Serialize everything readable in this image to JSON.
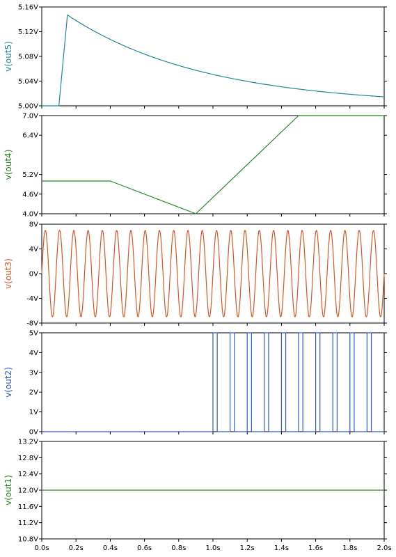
{
  "chart_data": {
    "type": "line",
    "x_axis": {
      "range": [
        0,
        2.0
      ],
      "ticks": [
        0,
        0.2,
        0.4,
        0.6,
        0.8,
        1.0,
        1.2,
        1.4,
        1.6,
        1.8,
        2.0
      ],
      "tick_labels": [
        "0.0s",
        "0.2s",
        "0.4s",
        "0.6s",
        "0.8s",
        "1.0s",
        "1.2s",
        "1.4s",
        "1.6s",
        "1.8s",
        "2.0s"
      ]
    },
    "panels": [
      {
        "id": "out5",
        "ylabel": "v(out5)",
        "color": "#1b8a98",
        "ylim": [
          5.0,
          5.16
        ],
        "ticks": [
          5.0,
          5.04,
          5.08,
          5.12,
          5.16
        ],
        "tick_labels": [
          "5.00V",
          "5.04V",
          "5.08V",
          "5.12V",
          "5.16V"
        ],
        "kind": "rise_decay",
        "params": {
          "t_rise_start": 0.1,
          "t_peak": 0.15,
          "baseline": 5.0,
          "peak": 5.147,
          "tau": 0.8
        }
      },
      {
        "id": "out4",
        "ylabel": "v(out4)",
        "color": "#1e8a1e",
        "ylim": [
          4.0,
          7.0
        ],
        "ticks": [
          4.0,
          4.6,
          5.2,
          6.4,
          7.0
        ],
        "tick_labels": [
          "4.0V",
          "4.6V",
          "5.2V",
          "6.4V",
          "7.0V"
        ],
        "kind": "points",
        "points": [
          [
            0,
            5.0
          ],
          [
            0.4,
            5.0
          ],
          [
            0.9,
            4.0
          ],
          [
            1.5,
            7.0
          ],
          [
            2.0,
            7.0
          ]
        ]
      },
      {
        "id": "out3",
        "ylabel": "v(out3)",
        "color": "#e0531f",
        "ylim": [
          -8,
          8
        ],
        "ticks": [
          -8,
          -4,
          0,
          4,
          8
        ],
        "tick_labels": [
          "-8V",
          "-4V",
          "0V",
          "4V",
          "8V"
        ],
        "kind": "sine",
        "params": {
          "amplitude": 7.0,
          "frequency_hz": 12.0
        }
      },
      {
        "id": "out2",
        "ylabel": "v(out2)",
        "color": "#2a5bd7",
        "ylim": [
          0,
          5
        ],
        "ticks": [
          0,
          1,
          2,
          3,
          4,
          5
        ],
        "tick_labels": [
          "0V",
          "1V",
          "2V",
          "3V",
          "4V",
          "5V"
        ],
        "kind": "pulses",
        "params": {
          "low": 0,
          "high": 5,
          "start": 1.0,
          "period": 0.1,
          "width": 0.025,
          "count": 10
        }
      },
      {
        "id": "out1",
        "ylabel": "v(out1)",
        "color": "#1e8a1e",
        "ylim": [
          10.8,
          13.2
        ],
        "ticks": [
          10.8,
          11.2,
          11.6,
          12.0,
          12.4,
          12.8,
          13.2
        ],
        "tick_labels": [
          "10.8V",
          "11.2V",
          "11.6V",
          "12.0V",
          "12.4V",
          "12.8V",
          "13.2V"
        ],
        "kind": "points",
        "points": [
          [
            0,
            12.0
          ],
          [
            2.0,
            12.0
          ]
        ]
      }
    ],
    "grid": false
  }
}
